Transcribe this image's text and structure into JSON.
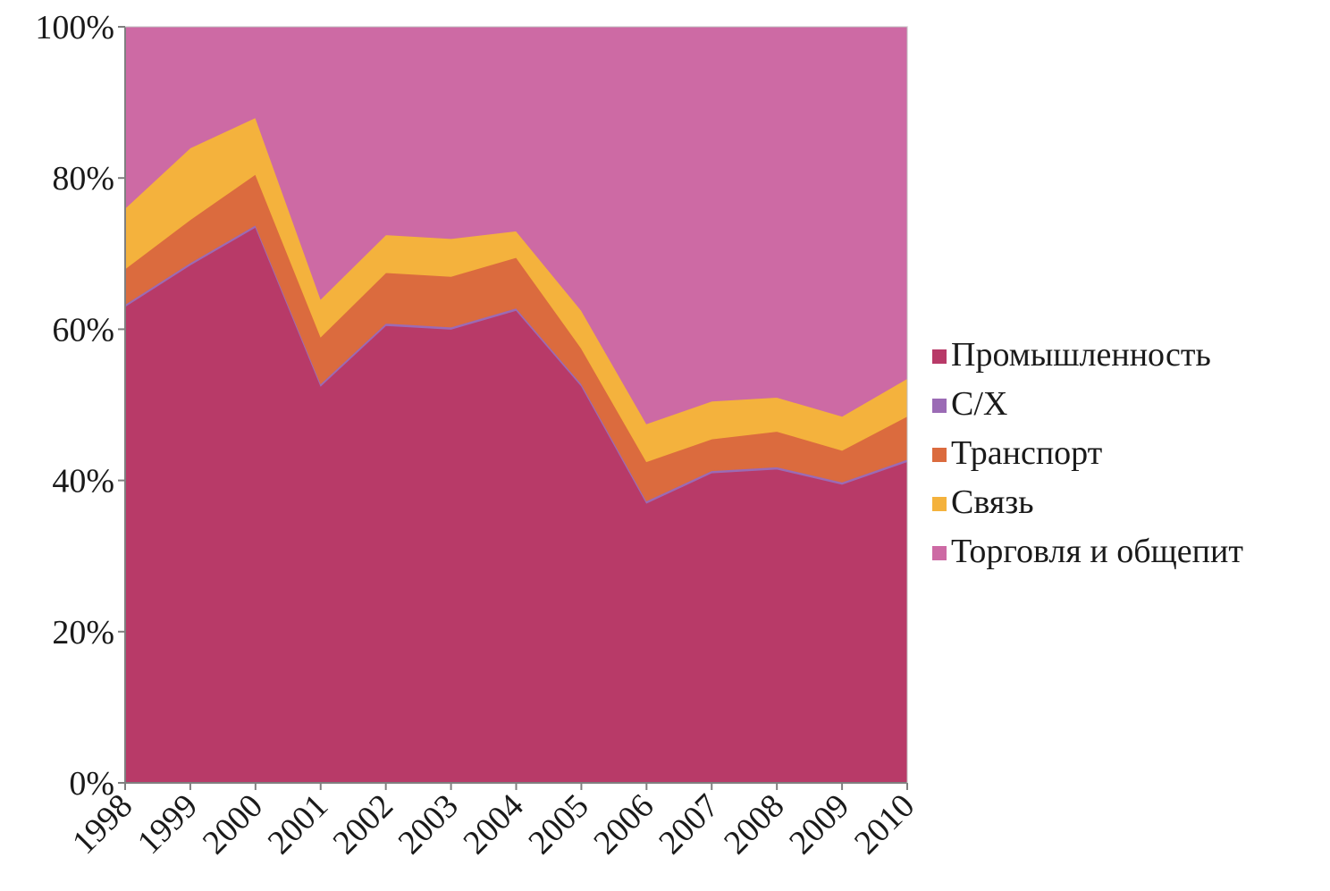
{
  "chart_data": {
    "type": "area",
    "stacked": "percent",
    "categories": [
      "1998",
      "1999",
      "2000",
      "2001",
      "2002",
      "2003",
      "2004",
      "2005",
      "2006",
      "2007",
      "2008",
      "2009",
      "2010"
    ],
    "y_ticks": [
      "0%",
      "20%",
      "40%",
      "60%",
      "80%",
      "100%"
    ],
    "ylim": [
      0,
      100
    ],
    "legend_position": "right",
    "series": [
      {
        "name": "Промышленность",
        "color": "#b83a68",
        "values": [
          63,
          68.5,
          73.5,
          52.5,
          60.5,
          60,
          62.5,
          52.5,
          37,
          41,
          41.5,
          39.5,
          42.5
        ]
      },
      {
        "name": "С/Х",
        "color": "#9b6bb5",
        "values": [
          0.3,
          0.3,
          0.3,
          0.3,
          0.3,
          0.3,
          0.3,
          0.3,
          0.3,
          0.3,
          0.3,
          0.3,
          0.3
        ]
      },
      {
        "name": "Транспорт",
        "color": "#db6b3e",
        "values": [
          4.7,
          5.7,
          6.7,
          6.2,
          6.7,
          6.7,
          6.7,
          4.7,
          5.2,
          4.2,
          4.7,
          4.2,
          5.7
        ]
      },
      {
        "name": "Связь",
        "color": "#f4b23d",
        "values": [
          8,
          9.5,
          7.5,
          5,
          5,
          5,
          3.5,
          5,
          5,
          5,
          4.5,
          4.5,
          5
        ]
      },
      {
        "name": "Торговля и общепит",
        "color": "#cd6aa4",
        "values": [
          24,
          16,
          12,
          36,
          27.5,
          28,
          27,
          37.5,
          52.5,
          49.5,
          49,
          51.5,
          46.5
        ]
      }
    ]
  }
}
